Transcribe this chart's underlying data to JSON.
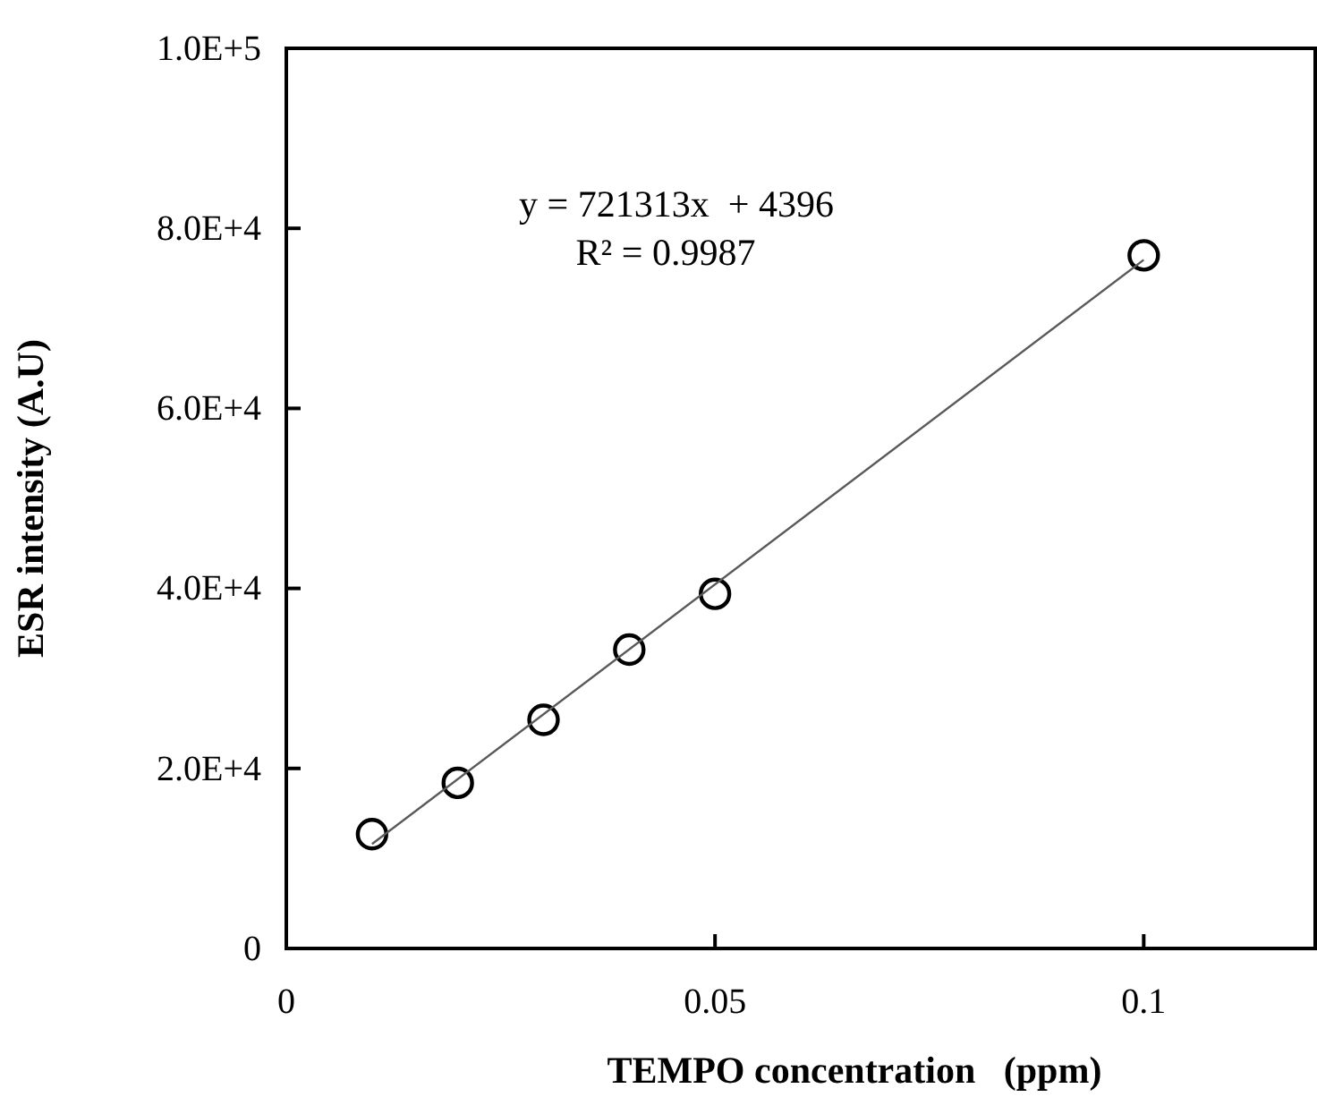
{
  "chart_data": {
    "type": "scatter",
    "xlabel": "TEMPO concentration   (ppm)",
    "ylabel": "ESR intensity (A.U)",
    "x": [
      0.01,
      0.02,
      0.03,
      0.04,
      0.05,
      0.1
    ],
    "series": [
      {
        "color": "#000000",
        "marker": "circle",
        "values": [
          12700,
          18400,
          25400,
          33200,
          39400,
          77000
        ]
      },
      {
        "type": "line",
        "color": "#595959",
        "x": [
          0.01,
          0.1
        ],
        "values": [
          11600,
          76500
        ]
      }
    ],
    "xlim": [
      0,
      0.12
    ],
    "xticks": [
      0,
      0.05,
      0.1
    ],
    "ylim": [
      0,
      100000
    ],
    "yticks": [
      {
        "value": 0,
        "label": "0"
      },
      {
        "value": 20000,
        "label": "2.0E+4"
      },
      {
        "value": 40000,
        "label": "4.0E+4"
      },
      {
        "value": 60000,
        "label": "6.0E+4"
      },
      {
        "value": 80000,
        "label": "8.0E+4"
      },
      {
        "value": 100000,
        "label": "1.0E+5"
      }
    ],
    "grid": false,
    "annotations": [
      "y = 721313x  + 4396",
      "R² = 0.9987"
    ]
  }
}
